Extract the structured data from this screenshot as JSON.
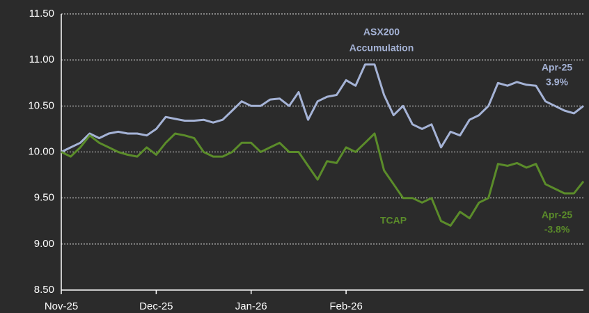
{
  "chart_data": {
    "type": "line",
    "categories": [
      "Nov-25",
      null,
      null,
      null,
      null,
      null,
      null,
      null,
      null,
      null,
      "Dec-25",
      null,
      null,
      null,
      null,
      null,
      null,
      null,
      null,
      null,
      "Jan-26",
      null,
      null,
      null,
      null,
      null,
      null,
      null,
      null,
      null,
      "Feb-26",
      null,
      null,
      null,
      null,
      null,
      null,
      null,
      null,
      null,
      null,
      null,
      null,
      null,
      null,
      null,
      null,
      null,
      null,
      null,
      null,
      null,
      null,
      null,
      null,
      null
    ],
    "series": [
      {
        "name": "ASX200 Accumulation",
        "color": "#a5b3d6",
        "values": [
          10.0,
          10.05,
          10.1,
          10.2,
          10.15,
          10.2,
          10.22,
          10.2,
          10.2,
          10.18,
          10.25,
          10.38,
          10.36,
          10.34,
          10.34,
          10.35,
          10.32,
          10.35,
          10.45,
          10.55,
          10.5,
          10.5,
          10.57,
          10.58,
          10.5,
          10.65,
          10.35,
          10.55,
          10.6,
          10.62,
          10.78,
          10.72,
          10.95,
          10.95,
          10.62,
          10.4,
          10.5,
          10.3,
          10.25,
          10.3,
          10.05,
          10.22,
          10.18,
          10.35,
          10.4,
          10.5,
          10.75,
          10.72,
          10.76,
          10.73,
          10.72,
          10.55,
          10.5,
          10.45,
          10.42,
          10.5
        ]
      },
      {
        "name": "TCAP",
        "color": "#5b8c2a",
        "values": [
          10.0,
          9.95,
          10.05,
          10.18,
          10.1,
          10.05,
          10.0,
          9.97,
          9.95,
          10.05,
          9.97,
          10.1,
          10.2,
          10.18,
          10.15,
          10.0,
          9.95,
          9.95,
          10.0,
          10.1,
          10.1,
          10.0,
          10.05,
          10.1,
          10.0,
          10.0,
          9.85,
          9.7,
          9.9,
          9.88,
          10.05,
          10.0,
          10.1,
          10.2,
          9.8,
          9.65,
          9.5,
          9.5,
          9.45,
          9.5,
          9.25,
          9.2,
          9.35,
          9.28,
          9.45,
          9.5,
          9.87,
          9.85,
          9.88,
          9.83,
          9.87,
          9.65,
          9.6,
          9.55,
          9.55,
          9.68
        ]
      }
    ],
    "annotations": [
      "ASX200",
      "Accumulation",
      "Apr-25",
      "3.9%",
      "TCAP",
      "Apr-25",
      "-3.8%"
    ],
    "ylim": [
      8.5,
      11.5
    ],
    "yticks": [
      {
        "value": 8.5,
        "label": "8.50"
      },
      {
        "value": 9.0,
        "label": "9.00"
      },
      {
        "value": 9.5,
        "label": "9.50"
      },
      {
        "value": 10.0,
        "label": "10.00"
      },
      {
        "value": 10.5,
        "label": "10.50"
      },
      {
        "value": 11.0,
        "label": "11.00"
      },
      {
        "value": 11.5,
        "label": "11.50"
      }
    ],
    "grid": true
  }
}
